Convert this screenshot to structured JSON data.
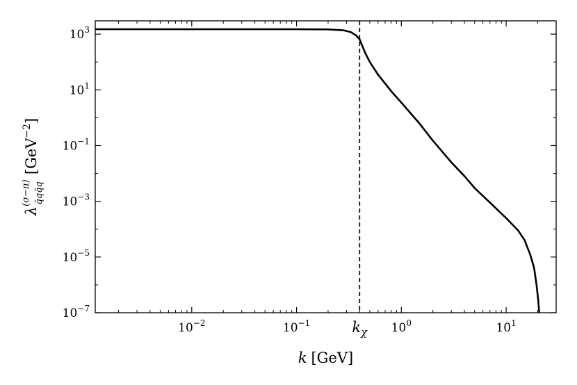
{
  "chart_data": {
    "type": "line",
    "x_scale": "log",
    "y_scale": "log",
    "xlim": [
      0.0012,
      30
    ],
    "ylim": [
      1e-07,
      3000
    ],
    "xlabel_symbol": "k",
    "xlabel_unit": "[GeV]",
    "ylabel_symbol": "λ",
    "ylabel_superscript": "(σ−π)",
    "ylabel_subscript": "q̄qq̄q",
    "ylabel_unit": "[GeV",
    "ylabel_unit_exponent": "−2",
    "ylabel_unit_close": "]",
    "x_ticks": [
      {
        "value": 0.01,
        "base": "10",
        "exp": "−2"
      },
      {
        "value": 0.1,
        "base": "10",
        "exp": "−1"
      },
      {
        "value": 1,
        "base": "10",
        "exp": "0"
      },
      {
        "value": 10,
        "base": "10",
        "exp": "1"
      }
    ],
    "y_ticks": [
      {
        "value": 1000.0,
        "base": "10",
        "exp": "3"
      },
      {
        "value": 10.0,
        "base": "10",
        "exp": "1"
      },
      {
        "value": 0.1,
        "base": "10",
        "exp": "−1"
      },
      {
        "value": 0.001,
        "base": "10",
        "exp": "−3"
      },
      {
        "value": 1e-05,
        "base": "10",
        "exp": "−5"
      },
      {
        "value": 1e-07,
        "base": "10",
        "exp": "−7"
      }
    ],
    "vline": {
      "x": 0.4,
      "style": "dashed",
      "label_base": "k",
      "label_sub": "χ"
    },
    "series": [
      {
        "color": "#000000",
        "x": [
          0.0012,
          0.01,
          0.05,
          0.1,
          0.2,
          0.28,
          0.33,
          0.37,
          0.4,
          0.45,
          0.5,
          0.6,
          0.8,
          1.0,
          1.5,
          2.0,
          3.0,
          4.0,
          5.0,
          7.0,
          10.0,
          13.0,
          15.0,
          17.0,
          18.5,
          19.5,
          20.2,
          20.6,
          20.8
        ],
        "y": [
          1500,
          1500,
          1500,
          1500,
          1480,
          1380,
          1180,
          900,
          650,
          220,
          100,
          35,
          9,
          3.5,
          0.6,
          0.15,
          0.025,
          0.008,
          0.003,
          0.0009,
          0.00025,
          9e-05,
          4e-05,
          1.2e-05,
          4e-06,
          1e-06,
          3e-07,
          1.2e-07,
          1e-07
        ]
      }
    ]
  }
}
